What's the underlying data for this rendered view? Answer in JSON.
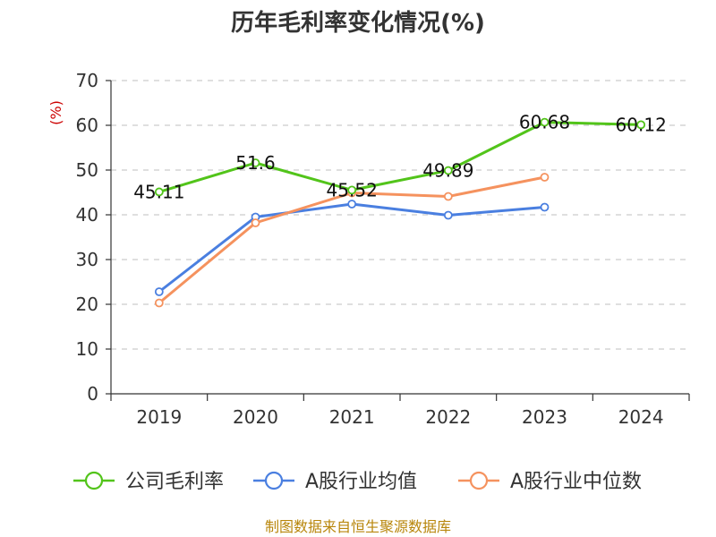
{
  "chart_data": {
    "type": "line",
    "title": "历年毛利率变化情况(%)",
    "ylabel": "(%)",
    "xlabel": "",
    "ylim": [
      0,
      70
    ],
    "yticks": [
      0,
      10,
      20,
      30,
      40,
      50,
      60,
      70
    ],
    "categories": [
      "2019",
      "2020",
      "2021",
      "2022",
      "2023",
      "2024"
    ],
    "grid": true,
    "legend_position": "bottom",
    "series": [
      {
        "name": "公司毛利率",
        "color": "#52c41a",
        "values": [
          45.11,
          51.6,
          45.52,
          49.89,
          60.68,
          60.12
        ],
        "labels": [
          "45.11",
          "51.6",
          "45.52",
          "49.89",
          "60.68",
          "60.12"
        ]
      },
      {
        "name": "A股行业均值",
        "color": "#4a7fe0",
        "values": [
          22.8,
          39.5,
          42.4,
          39.9,
          41.7,
          null
        ]
      },
      {
        "name": "A股行业中位数",
        "color": "#f5925e",
        "values": [
          20.3,
          38.2,
          44.9,
          44.1,
          48.4,
          null
        ]
      }
    ]
  },
  "source_text": "制图数据来自恒生聚源数据库"
}
